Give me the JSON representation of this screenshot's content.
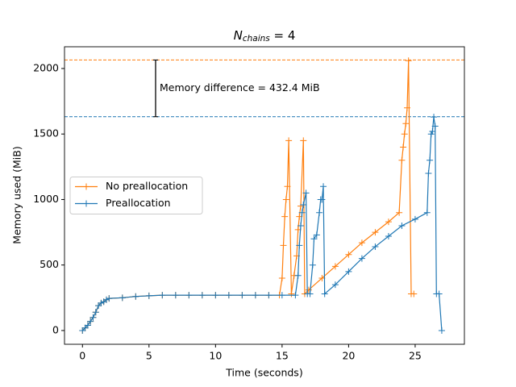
{
  "chart_data": {
    "type": "line",
    "title": {
      "main": "N",
      "sub": "chains",
      "rest": " = 4"
    },
    "x_label": "Time (seconds)",
    "y_label": "Memory used (MiB)",
    "xlim": [
      -1.35,
      28.7
    ],
    "ylim": [
      -105,
      2166
    ],
    "xticks": [
      0,
      5,
      10,
      15,
      20,
      25
    ],
    "yticks": [
      0,
      500,
      1000,
      1500,
      2000
    ],
    "legend": "center left",
    "hlines": [
      2065,
      1632
    ],
    "annotation": "Memory difference = 432.4 MiB",
    "series": [
      {
        "name": "No preallocation",
        "color": "#ff7f0e",
        "x": [
          0,
          0.2,
          0.4,
          0.6,
          0.8,
          1.0,
          1.2,
          1.4,
          1.6,
          1.8,
          2.0,
          3,
          4,
          5,
          6,
          7,
          8,
          9,
          10,
          11,
          12,
          13,
          14,
          14.8,
          15.0,
          15.1,
          15.2,
          15.3,
          15.4,
          15.5,
          15.7,
          15.9,
          16.1,
          16.2,
          16.3,
          16.4,
          16.6,
          16.7,
          17,
          18,
          19,
          20,
          21,
          22,
          23,
          23.8,
          24.0,
          24.1,
          24.2,
          24.3,
          24.4,
          24.5,
          24.7,
          24.9
        ],
        "values": [
          0,
          20,
          40,
          70,
          100,
          140,
          190,
          210,
          220,
          235,
          245,
          250,
          260,
          265,
          270,
          270,
          270,
          270,
          270,
          270,
          270,
          270,
          270,
          270,
          400,
          650,
          870,
          1000,
          1100,
          1450,
          280,
          420,
          570,
          770,
          870,
          950,
          1450,
          280,
          310,
          400,
          490,
          580,
          670,
          750,
          830,
          900,
          1300,
          1400,
          1500,
          1580,
          1700,
          2060,
          280,
          280
        ]
      },
      {
        "name": "Preallocation",
        "color": "#1f77b4",
        "x": [
          0,
          0.2,
          0.4,
          0.6,
          0.8,
          1.0,
          1.2,
          1.4,
          1.6,
          1.8,
          2.0,
          3,
          4,
          5,
          6,
          7,
          8,
          9,
          10,
          11,
          12,
          13,
          14,
          15,
          16,
          16.2,
          16.3,
          16.4,
          16.5,
          16.6,
          16.8,
          16.9,
          17.1,
          17.3,
          17.4,
          17.6,
          17.8,
          17.9,
          18.0,
          18.1,
          18.2,
          19,
          20,
          21,
          22,
          23,
          24,
          25,
          25.9,
          26.0,
          26.1,
          26.2,
          26.3,
          26.4,
          26.5,
          26.6,
          26.8,
          27.0
        ],
        "values": [
          0,
          20,
          40,
          70,
          100,
          140,
          190,
          210,
          220,
          235,
          245,
          250,
          260,
          265,
          270,
          270,
          270,
          270,
          270,
          270,
          270,
          270,
          270,
          270,
          270,
          420,
          650,
          800,
          900,
          960,
          1050,
          280,
          280,
          500,
          700,
          730,
          900,
          1000,
          1000,
          1100,
          280,
          350,
          450,
          550,
          640,
          720,
          800,
          850,
          900,
          1200,
          1300,
          1500,
          1520,
          1630,
          1560,
          280,
          280,
          0
        ]
      }
    ]
  }
}
